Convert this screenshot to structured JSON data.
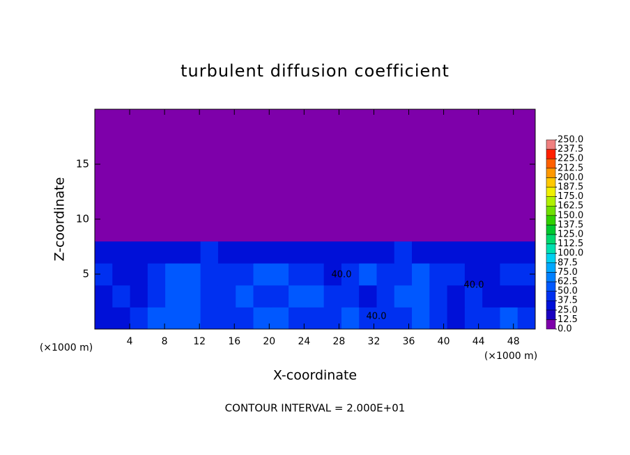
{
  "chart_data": {
    "type": "heatmap",
    "title": "turbulent diffusion coefficient",
    "x_label": "X-coordinate",
    "y_label": "Z-coordinate",
    "x_unit_labels": [
      "(×1000 m)",
      "(×1000 m)"
    ],
    "footer": "CONTOUR INTERVAL = 2.000E+01",
    "contour_labels": [
      "40.0",
      "40.0",
      "40.0"
    ],
    "xlim": [
      0,
      50.5
    ],
    "ylim": [
      0,
      20
    ],
    "xticks": [
      4,
      8,
      12,
      16,
      20,
      24,
      28,
      32,
      36,
      40,
      44,
      48
    ],
    "yticks": [
      5,
      10,
      15
    ],
    "values": [
      [
        30,
        35,
        40,
        55,
        60,
        50,
        45,
        40,
        45,
        60,
        55,
        45,
        40,
        45,
        50,
        45,
        40,
        45,
        50,
        40,
        35,
        40,
        45,
        50,
        45
      ],
      [
        35,
        40,
        30,
        45,
        55,
        50,
        45,
        40,
        50,
        45,
        40,
        55,
        50,
        45,
        40,
        35,
        45,
        55,
        50,
        40,
        35,
        40,
        35,
        30,
        35
      ],
      [
        40,
        35,
        30,
        45,
        50,
        55,
        45,
        40,
        45,
        50,
        55,
        45,
        40,
        35,
        45,
        50,
        40,
        45,
        55,
        45,
        40,
        35,
        35,
        40,
        45
      ],
      [
        35,
        30,
        25,
        35,
        30,
        35,
        40,
        35,
        30,
        35,
        25,
        30,
        25,
        25,
        30,
        30,
        35,
        40,
        30,
        25,
        25,
        30,
        30,
        35,
        30
      ],
      [
        0,
        0,
        0,
        0,
        0,
        0,
        0,
        0,
        0,
        0,
        0,
        0,
        0,
        0,
        0,
        0,
        0,
        0,
        0,
        0,
        0,
        0,
        0,
        0,
        0
      ],
      [
        0,
        0,
        0,
        0,
        0,
        0,
        0,
        0,
        0,
        0,
        0,
        0,
        0,
        0,
        0,
        0,
        0,
        0,
        0,
        0,
        0,
        0,
        0,
        0,
        0
      ],
      [
        0,
        0,
        0,
        0,
        0,
        0,
        0,
        0,
        0,
        0,
        0,
        0,
        0,
        0,
        0,
        0,
        0,
        0,
        0,
        0,
        0,
        0,
        0,
        0,
        0
      ],
      [
        0,
        0,
        0,
        0,
        0,
        0,
        0,
        0,
        0,
        0,
        0,
        0,
        0,
        0,
        0,
        0,
        0,
        0,
        0,
        0,
        0,
        0,
        0,
        0,
        0
      ],
      [
        0,
        0,
        0,
        0,
        0,
        0,
        0,
        0,
        0,
        0,
        0,
        0,
        0,
        0,
        0,
        0,
        0,
        0,
        0,
        0,
        0,
        0,
        0,
        0,
        0
      ],
      [
        0,
        0,
        0,
        0,
        0,
        0,
        0,
        0,
        0,
        0,
        0,
        0,
        0,
        0,
        0,
        0,
        0,
        0,
        0,
        0,
        0,
        0,
        0,
        0,
        0
      ]
    ],
    "clim": [
      0,
      250
    ],
    "colors": [
      "#7e00aa",
      "#1a00c0",
      "#0010d8",
      "#0030f0",
      "#0058ff",
      "#0080ff",
      "#00a8ff",
      "#00d0f0",
      "#00e0b0",
      "#00d870",
      "#00c830",
      "#30d000",
      "#70e000",
      "#b0f000",
      "#f0f000",
      "#ffc800",
      "#ff9800",
      "#ff6000",
      "#ff2000",
      "#f08080"
    ],
    "cticks": [
      {
        "value": 0,
        "label": "0.0"
      },
      12.5,
      {
        "value": 25,
        "label": "25.0"
      },
      37.5,
      {
        "value": 50,
        "label": "50.0"
      },
      62.5,
      {
        "value": 75,
        "label": "75.0"
      },
      87.5,
      {
        "value": 100,
        "label": "100.0"
      },
      112.5,
      {
        "value": 125,
        "label": "125.0"
      },
      137.5,
      {
        "value": 150,
        "label": "150.0"
      },
      162.5,
      {
        "value": 175,
        "label": "175.0"
      },
      187.5,
      {
        "value": 200,
        "label": "200.0"
      },
      212.5,
      {
        "value": 225,
        "label": "225.0"
      },
      237.5,
      {
        "value": 250,
        "label": "250.0"
      }
    ]
  }
}
